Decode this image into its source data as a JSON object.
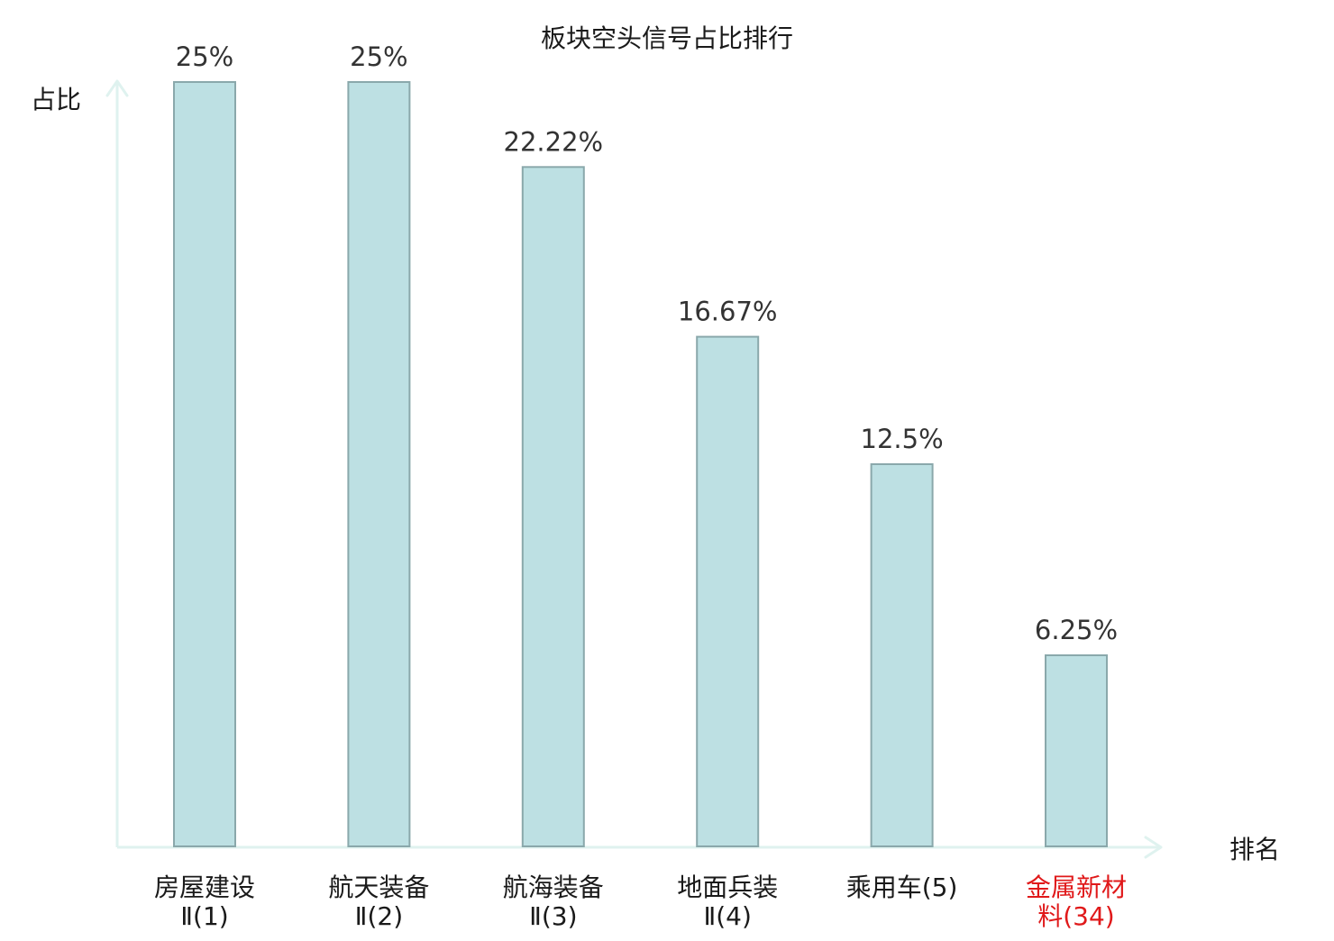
{
  "chart_data": {
    "type": "bar",
    "title": "板块空头信号占比排行",
    "ylabel": "占比",
    "xlabel": "排名",
    "ylim": [
      0,
      25
    ],
    "categories": [
      {
        "lines": [
          "房屋建设",
          "Ⅱ(1)"
        ],
        "highlight": false
      },
      {
        "lines": [
          "航天装备",
          "Ⅱ(2)"
        ],
        "highlight": false
      },
      {
        "lines": [
          "航海装备",
          "Ⅱ(3)"
        ],
        "highlight": false
      },
      {
        "lines": [
          "地面兵装",
          "Ⅱ(4)"
        ],
        "highlight": false
      },
      {
        "lines": [
          "乘用车(5)"
        ],
        "highlight": false
      },
      {
        "lines": [
          "金属新材",
          "料(34)"
        ],
        "highlight": true
      }
    ],
    "values": [
      25,
      25,
      22.22,
      16.67,
      12.5,
      6.25
    ],
    "value_labels": [
      "25%",
      "25%",
      "22.22%",
      "16.67%",
      "12.5%",
      "6.25%"
    ],
    "colors": {
      "bar_fill": "#bde0e3",
      "bar_stroke": "#8aa8ab",
      "axis": "#dff2ef",
      "text": "#1a1a1a",
      "value_text": "#333333",
      "highlight": "#e0191a"
    },
    "grid": false,
    "legend": "none"
  }
}
